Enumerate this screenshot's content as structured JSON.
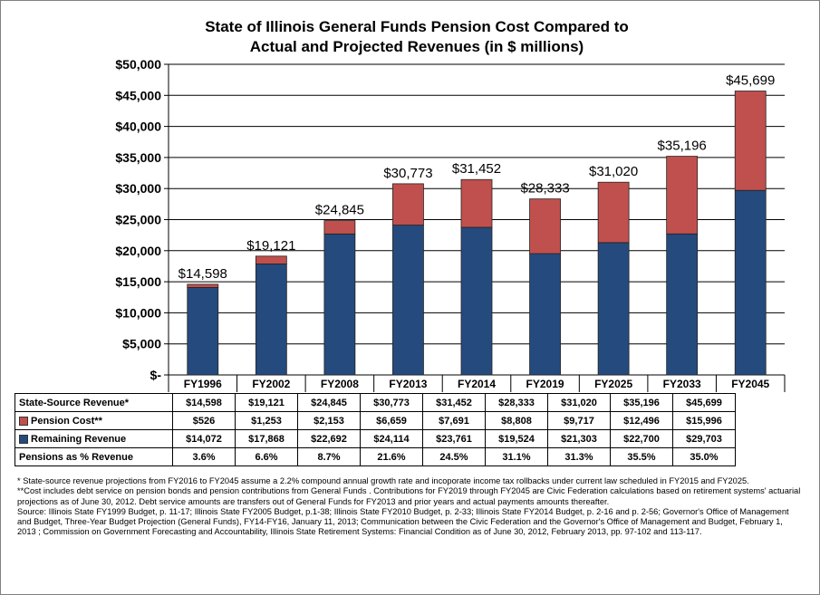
{
  "title": [
    "State of Illinois General Funds Pension Cost Compared to",
    "Actual and Projected Revenues (in $ millions)"
  ],
  "chart_data": {
    "type": "bar",
    "stacked": true,
    "categories": [
      "FY1996",
      "FY2002",
      "FY2008",
      "FY2013",
      "FY2014",
      "FY2019",
      "FY2025",
      "FY2033",
      "FY2045"
    ],
    "series": [
      {
        "name": "Remaining Revenue",
        "color": "#254A7D",
        "values": [
          14072,
          17868,
          22692,
          24114,
          23761,
          19524,
          21303,
          22700,
          29703
        ]
      },
      {
        "name": "Pension Cost**",
        "color": "#C0504D",
        "values": [
          526,
          1253,
          2153,
          6659,
          7691,
          8808,
          9717,
          12496,
          15996
        ]
      }
    ],
    "total_labels": [
      "$14,598",
      "$19,121",
      "$24,845",
      "$30,773",
      "$31,452",
      "$28,333",
      "$31,020",
      "$35,196",
      "$45,699"
    ],
    "ylim": [
      0,
      50000
    ],
    "yticks": [
      "$-",
      "$5,000",
      "$10,000",
      "$15,000",
      "$20,000",
      "$25,000",
      "$30,000",
      "$35,000",
      "$40,000",
      "$45,000",
      "$50,000"
    ],
    "grid": true,
    "legend": "data table"
  },
  "table": {
    "rows": [
      {
        "label": "State-Source Revenue*",
        "swatch": "",
        "values": [
          "$14,598",
          "$19,121",
          "$24,845",
          "$30,773",
          "$31,452",
          "$28,333",
          "$31,020",
          "$35,196",
          "$45,699"
        ]
      },
      {
        "label": "Pension Cost**",
        "swatch": "#C0504D",
        "values": [
          "$526",
          "$1,253",
          "$2,153",
          "$6,659",
          "$7,691",
          "$8,808",
          "$9,717",
          "$12,496",
          "$15,996"
        ]
      },
      {
        "label": "Remaining Revenue",
        "swatch": "#254A7D",
        "values": [
          "$14,072",
          "$17,868",
          "$22,692",
          "$24,114",
          "$23,761",
          "$19,524",
          "$21,303",
          "$22,700",
          "$29,703"
        ]
      },
      {
        "label": "Pensions as % Revenue",
        "swatch": "",
        "values": [
          "3.6%",
          "6.6%",
          "8.7%",
          "21.6%",
          "24.5%",
          "31.1%",
          "31.3%",
          "35.5%",
          "35.0%"
        ]
      }
    ]
  },
  "notes": [
    "* State-source revenue projections from FY2016 to FY2045 assume a 2.2% compound annual growth rate and incoporate income tax rollbacks under current law scheduled in FY2015 and FY2025.",
    "**Cost includes debt service on pension bonds and pension contributions from General Funds . Contributions for FY2019 through FY2045 are Civic Federation calculations based on retirement systems' actuarial projections as of June 30, 2012. Debt service amounts are transfers out of General Funds for FY2013 and prior years and actual payments amounts thereafter.",
    "Source: Illinois State FY1999 Budget, p. 11-17; Illinois State FY2005 Budget, p.1-38; Illinois State FY2010 Budget, p. 2-33; Illinois State FY2014 Budget, p. 2-16 and p. 2-56; Governor's Office of Management and Budget, Three-Year Budget Projection (General Funds), FY14-FY16, January 11, 2013; Communication between the Civic Federation and the Governor's Office of Management and Budget, February 1, 2013 ; Commission on Government Forecasting and Accountability, Illinois State Retirement Systems: Financial Condition as of June 30, 2012, February  2013, pp. 97-102 and 113-117."
  ]
}
